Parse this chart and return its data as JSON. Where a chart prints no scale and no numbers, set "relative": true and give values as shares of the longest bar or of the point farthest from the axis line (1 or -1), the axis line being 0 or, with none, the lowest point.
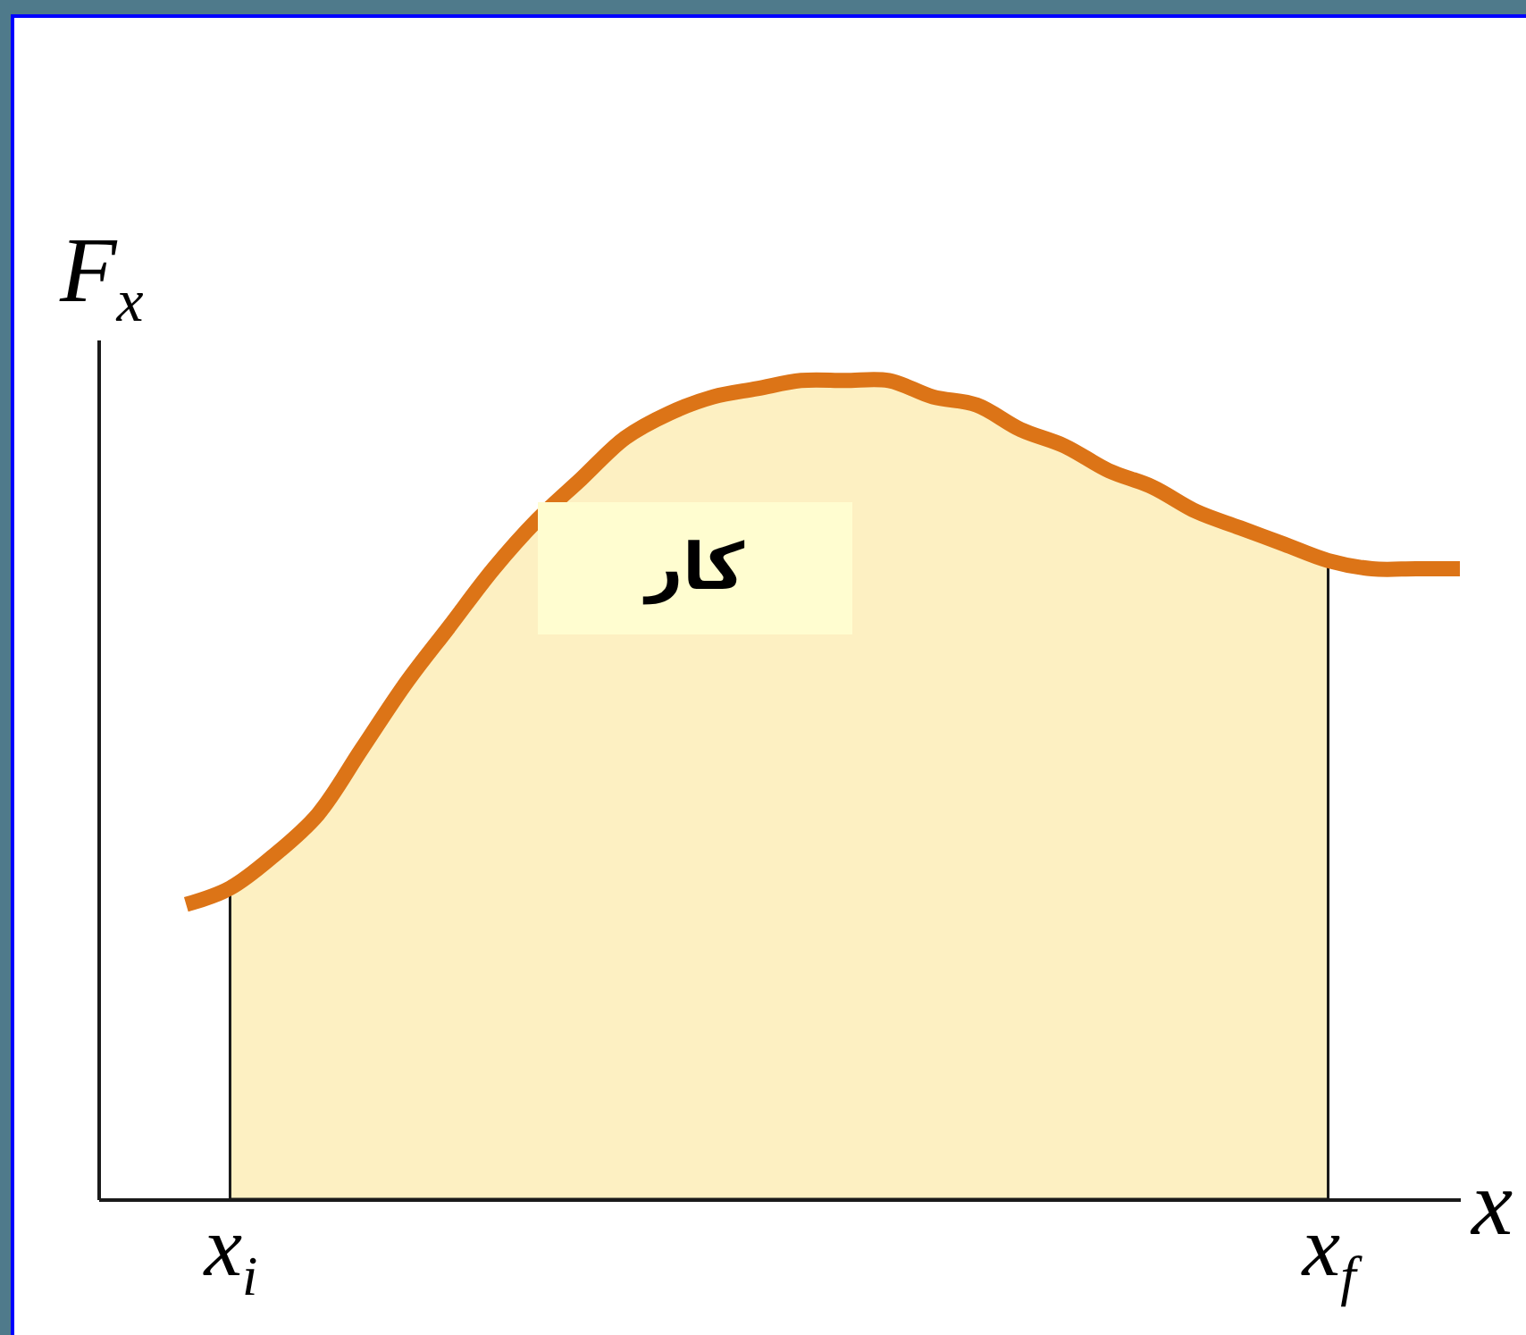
{
  "chart_data": {
    "type": "line",
    "relative": true,
    "xlabel": "x",
    "ylabel": "F$_{x}$",
    "tick_labels": "x",
    "categories": [
      null,
      "x$_{i}$",
      null,
      null,
      null,
      null,
      null,
      null,
      null,
      null,
      null,
      null,
      null,
      null,
      null,
      null,
      null,
      null,
      null,
      null,
      null,
      null,
      null,
      null,
      null,
      null,
      "x$_{f}$",
      null,
      null,
      null
    ],
    "series": [
      {
        "type": "area",
        "color": "#fdf0c2",
        "values": [
          null,
          0.38,
          0.42,
          0.47,
          0.55,
          0.63,
          0.7,
          0.77,
          0.83,
          0.88,
          0.93,
          0.96,
          0.98,
          0.99,
          1.0,
          1.0,
          1.0,
          0.98,
          0.97,
          0.94,
          0.92,
          0.89,
          0.87,
          0.84,
          0.82,
          0.8,
          0.78,
          null,
          null,
          null
        ]
      },
      {
        "color": "#dc7417",
        "values": [
          0.36,
          0.38,
          0.42,
          0.47,
          0.55,
          0.63,
          0.7,
          0.77,
          0.83,
          0.88,
          0.93,
          0.96,
          0.98,
          0.99,
          1.0,
          1.0,
          1.0,
          0.98,
          0.97,
          0.94,
          0.92,
          0.89,
          0.87,
          0.84,
          0.82,
          0.8,
          0.78,
          0.77,
          0.77,
          0.77
        ]
      }
    ],
    "annotations": [
      "کار"
    ]
  }
}
